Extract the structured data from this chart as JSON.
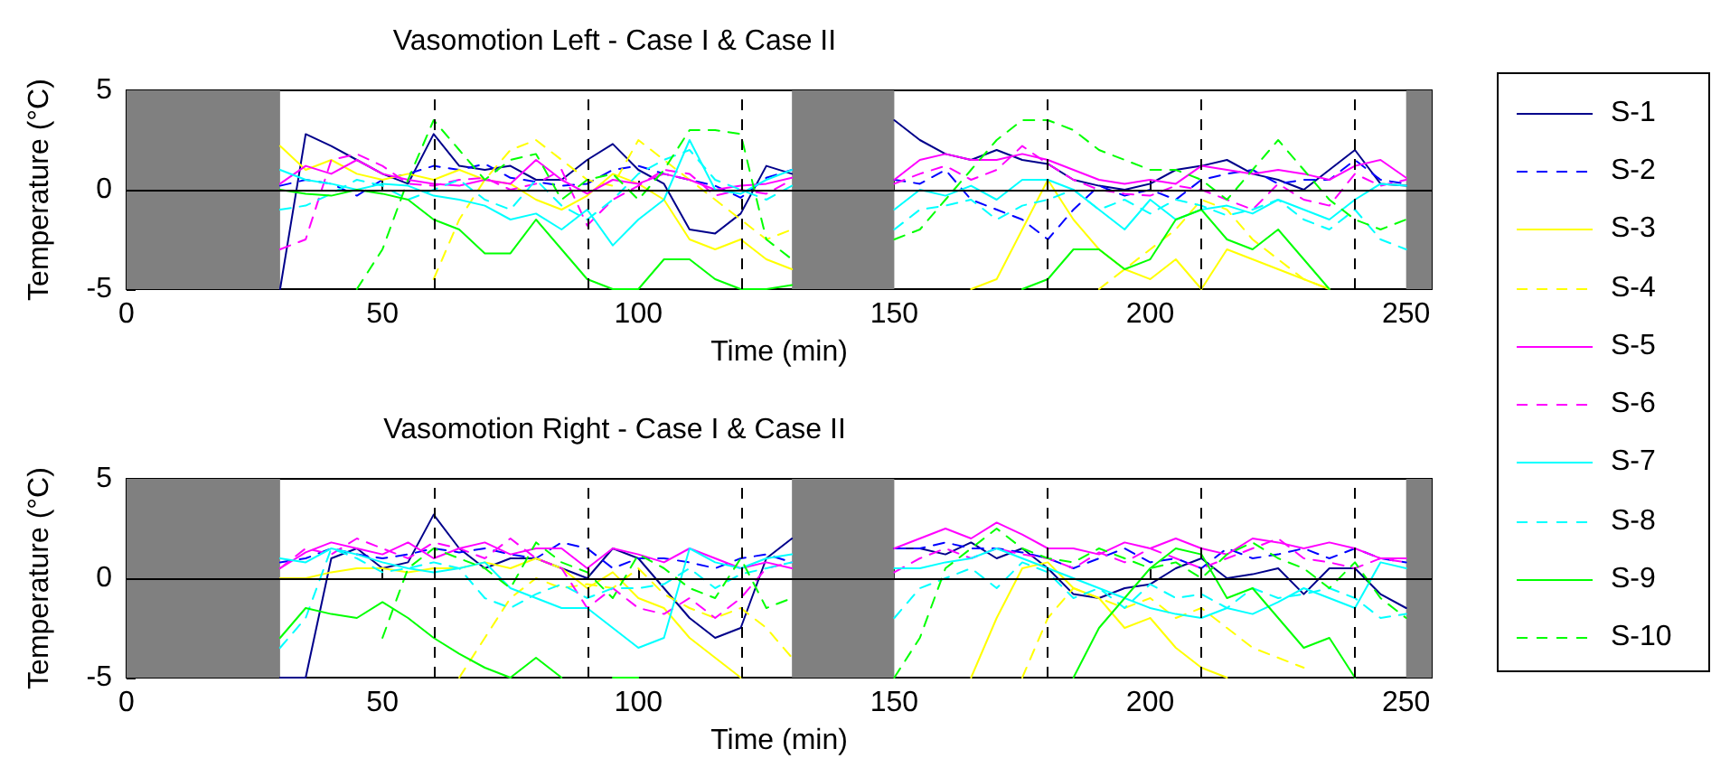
{
  "chart_data": [
    {
      "type": "line",
      "title": "Vasomotion Left - Case I & Case II",
      "xlabel": "Time (min)",
      "ylabel": "Temperature (°C)",
      "x": [
        30,
        35,
        40,
        45,
        50,
        55,
        60,
        65,
        70,
        75,
        80,
        85,
        90,
        95,
        100,
        105,
        110,
        115,
        120,
        125,
        130,
        140,
        150,
        155,
        160,
        165,
        170,
        175,
        180,
        185,
        190,
        195,
        200,
        205,
        210,
        215,
        220,
        225,
        230,
        235,
        240,
        245,
        250
      ],
      "xlim": [
        0,
        255
      ],
      "xticks": [
        0,
        50,
        100,
        150,
        200,
        250
      ],
      "ylim": [
        -5,
        5
      ],
      "yticks": [
        -5,
        0,
        5
      ],
      "grid": false,
      "legend": "right",
      "marker": "none",
      "bands": [
        {
          "axis": "x",
          "from": 0,
          "to": 30,
          "color": "#808080"
        },
        {
          "axis": "x",
          "from": 130,
          "to": 150,
          "color": "#808080"
        },
        {
          "axis": "x",
          "from": 250,
          "to": 255,
          "color": "#808080"
        }
      ],
      "ref_lines": [
        {
          "axis": "y",
          "value": 0,
          "color": "#000000",
          "line_style": "solid"
        },
        {
          "axis": "x",
          "value": 60,
          "color": "#000000",
          "line_style": "dashed"
        },
        {
          "axis": "x",
          "value": 90,
          "color": "#000000",
          "line_style": "dashed"
        },
        {
          "axis": "x",
          "value": 120,
          "color": "#000000",
          "line_style": "dashed"
        },
        {
          "axis": "x",
          "value": 180,
          "color": "#000000",
          "line_style": "dashed"
        },
        {
          "axis": "x",
          "value": 210,
          "color": "#000000",
          "line_style": "dashed"
        },
        {
          "axis": "x",
          "value": 240,
          "color": "#000000",
          "line_style": "dashed"
        }
      ],
      "series": [
        {
          "name": "S-1",
          "color": "#00008b",
          "line_style": "solid",
          "values": [
            -5,
            2.8,
            2.2,
            1.5,
            0.8,
            0.3,
            2.8,
            1.2,
            1.0,
            1.2,
            0.5,
            0.5,
            1.5,
            2.3,
            1.0,
            0.3,
            -2.0,
            -2.2,
            -1.2,
            1.2,
            0.8,
            null,
            3.5,
            2.5,
            1.8,
            1.5,
            2.0,
            1.5,
            1.3,
            0.5,
            0.2,
            0.0,
            0.3,
            1.0,
            1.2,
            1.5,
            0.8,
            0.5,
            0.0,
            1.0,
            2.0,
            0.3,
            0.2
          ]
        },
        {
          "name": "S-2",
          "color": "#0000ff",
          "line_style": "dashed",
          "values": [
            0.2,
            0.5,
            0.3,
            -0.3,
            0.5,
            0.8,
            1.2,
            1.0,
            1.3,
            0.6,
            0.4,
            0.2,
            0.3,
            1.0,
            1.2,
            0.8,
            0.5,
            0.2,
            -0.4,
            0.6,
            1.0,
            null,
            0.5,
            0.3,
            1.0,
            -0.5,
            -1.0,
            -1.5,
            -2.5,
            -1.0,
            0.2,
            -0.3,
            0.0,
            -0.5,
            0.5,
            0.8,
            1.0,
            0.3,
            0.5,
            0.5,
            1.5,
            0.5,
            0.3
          ]
        },
        {
          "name": "S-3",
          "color": "#ffff00",
          "line_style": "solid",
          "values": [
            2.2,
            1.0,
            1.5,
            0.8,
            0.5,
            0.8,
            0.5,
            1.0,
            0.5,
            0.3,
            -0.5,
            -1.0,
            -0.3,
            0.8,
            0.3,
            -0.5,
            -2.5,
            -3.0,
            -2.5,
            -3.5,
            -4.0,
            null,
            null,
            null,
            null,
            -5,
            -4.5,
            -2,
            0.5,
            -1.5,
            -3.0,
            -4.0,
            -4.5,
            -3.5,
            -5,
            -3.0,
            -3.5,
            -4.0,
            -4.5,
            -5,
            null,
            null,
            null
          ]
        },
        {
          "name": "S-4",
          "color": "#ffff00",
          "line_style": "dashed",
          "values": [
            null,
            null,
            null,
            null,
            null,
            null,
            -4.5,
            -1.5,
            0.5,
            2.0,
            2.5,
            1.5,
            0.5,
            0.2,
            2.5,
            1.5,
            0.5,
            -0.5,
            -1.5,
            -2.5,
            -2.0,
            null,
            null,
            null,
            null,
            null,
            null,
            null,
            null,
            null,
            -5,
            -4.0,
            -3.0,
            -2.0,
            -0.5,
            -1.0,
            -2.5,
            -3.5,
            -4.5,
            -5,
            null,
            null,
            null
          ]
        },
        {
          "name": "S-5",
          "color": "#ff00ff",
          "line_style": "solid",
          "values": [
            0.3,
            1.2,
            0.8,
            1.5,
            0.8,
            0.5,
            0.3,
            0.2,
            0.5,
            0.3,
            1.5,
            0.5,
            -0.2,
            0.5,
            0.3,
            0.8,
            0.5,
            0.0,
            0.2,
            0.3,
            0.6,
            null,
            0.5,
            1.5,
            1.8,
            1.5,
            1.5,
            1.8,
            1.5,
            1.0,
            0.5,
            0.3,
            0.5,
            0.3,
            1.2,
            1.0,
            0.8,
            1.0,
            0.8,
            0.5,
            1.2,
            1.5,
            0.6
          ]
        },
        {
          "name": "S-6",
          "color": "#ff00ff",
          "line_style": "dashed",
          "values": [
            -3.0,
            -2.5,
            1.5,
            1.8,
            1.2,
            0.3,
            0.2,
            0.5,
            0.6,
            0.0,
            0.3,
            1.0,
            -1.8,
            -0.5,
            0.2,
            1.0,
            0.8,
            -0.3,
            0.0,
            -0.2,
            0.5,
            null,
            0.3,
            0.8,
            1.2,
            0.5,
            1.0,
            2.2,
            1.3,
            0.5,
            0.0,
            -0.2,
            -0.3,
            0.2,
            0.0,
            -0.5,
            -1.0,
            0.3,
            -0.5,
            -0.8,
            0.8,
            0.2,
            0.5
          ]
        },
        {
          "name": "S-7",
          "color": "#00ffff",
          "line_style": "solid",
          "values": [
            1.0,
            0.5,
            0.3,
            0.0,
            0.3,
            0.2,
            -0.3,
            -0.5,
            -0.8,
            -1.5,
            -1.2,
            -2.0,
            -1.0,
            -2.8,
            -1.5,
            -0.5,
            2.5,
            0.0,
            -0.2,
            0.5,
            1.0,
            null,
            -1.0,
            0.0,
            -0.3,
            0.2,
            -0.5,
            0.5,
            0.5,
            0.0,
            -1.0,
            -2.0,
            -0.5,
            -1.5,
            -1.0,
            -0.8,
            -1.2,
            -0.5,
            -1.0,
            -1.5,
            -0.5,
            0.3,
            0.2
          ]
        },
        {
          "name": "S-8",
          "color": "#00ffff",
          "line_style": "dashed",
          "values": [
            -1.0,
            -0.8,
            -0.2,
            0.5,
            0.2,
            -0.5,
            0.0,
            0.5,
            -0.5,
            -1.0,
            0.5,
            -0.8,
            -1.5,
            -0.5,
            0.8,
            1.5,
            2.0,
            0.5,
            0.0,
            -0.5,
            0.2,
            null,
            -2.0,
            -1.0,
            -0.8,
            -0.5,
            -1.5,
            -0.8,
            -0.5,
            0.0,
            -1.0,
            -0.5,
            -1.2,
            -0.5,
            -0.8,
            -1.3,
            -1.0,
            -0.5,
            -1.5,
            -2.0,
            -1.0,
            -2.5,
            -3.0
          ]
        },
        {
          "name": "S-9",
          "color": "#00ff00",
          "line_style": "solid",
          "values": [
            0.0,
            -0.2,
            -0.3,
            0.0,
            -0.2,
            -0.5,
            -1.5,
            -2.0,
            -3.2,
            -3.2,
            -1.5,
            -3.0,
            -4.5,
            -5,
            -5,
            -3.5,
            -3.5,
            -4.5,
            -5,
            -5,
            -4.8,
            null,
            null,
            null,
            null,
            null,
            null,
            -5,
            -4.5,
            -3.0,
            -3.0,
            -4.0,
            -3.5,
            -1.5,
            -1.0,
            -2.5,
            -3.0,
            -2.0,
            -3.5,
            -5,
            null,
            null,
            null
          ]
        },
        {
          "name": "S-10",
          "color": "#00ff00",
          "line_style": "dashed",
          "values": [
            null,
            null,
            null,
            -5,
            -3.0,
            0.5,
            3.5,
            2.0,
            0.5,
            1.5,
            1.8,
            -0.5,
            0.5,
            0.8,
            -0.5,
            1.0,
            3.0,
            3.0,
            2.8,
            -2.5,
            -3.5,
            null,
            -2.5,
            -2.0,
            -0.5,
            1.0,
            2.5,
            3.5,
            3.5,
            3.0,
            2.0,
            1.5,
            1.0,
            1.0,
            0.5,
            -0.5,
            1.0,
            2.5,
            1.0,
            -0.5,
            -1.5,
            -2.0,
            -1.5
          ]
        }
      ]
    },
    {
      "type": "line",
      "title": "Vasomotion Right - Case I & Case II",
      "xlabel": "Time (min)",
      "ylabel": "Temperature (°C)",
      "x": [
        30,
        35,
        40,
        45,
        50,
        55,
        60,
        65,
        70,
        75,
        80,
        85,
        90,
        95,
        100,
        105,
        110,
        115,
        120,
        125,
        130,
        140,
        150,
        155,
        160,
        165,
        170,
        175,
        180,
        185,
        190,
        195,
        200,
        205,
        210,
        215,
        220,
        225,
        230,
        235,
        240,
        245,
        250
      ],
      "xlim": [
        0,
        255
      ],
      "xticks": [
        0,
        50,
        100,
        150,
        200,
        250
      ],
      "ylim": [
        -5,
        5
      ],
      "yticks": [
        -5,
        0,
        5
      ],
      "grid": false,
      "marker": "none",
      "bands": [
        {
          "axis": "x",
          "from": 0,
          "to": 30,
          "color": "#808080"
        },
        {
          "axis": "x",
          "from": 130,
          "to": 150,
          "color": "#808080"
        },
        {
          "axis": "x",
          "from": 250,
          "to": 255,
          "color": "#808080"
        }
      ],
      "ref_lines": [
        {
          "axis": "y",
          "value": 0,
          "color": "#000000",
          "line_style": "solid"
        },
        {
          "axis": "x",
          "value": 60,
          "color": "#000000",
          "line_style": "dashed"
        },
        {
          "axis": "x",
          "value": 90,
          "color": "#000000",
          "line_style": "dashed"
        },
        {
          "axis": "x",
          "value": 120,
          "color": "#000000",
          "line_style": "dashed"
        },
        {
          "axis": "x",
          "value": 180,
          "color": "#000000",
          "line_style": "dashed"
        },
        {
          "axis": "x",
          "value": 210,
          "color": "#000000",
          "line_style": "dashed"
        },
        {
          "axis": "x",
          "value": 240,
          "color": "#000000",
          "line_style": "dashed"
        }
      ],
      "series": [
        {
          "color": "#00008b",
          "line_style": "solid",
          "values": [
            -5,
            -5,
            1.0,
            1.5,
            0.5,
            0.8,
            3.2,
            1.5,
            0.5,
            1.0,
            1.0,
            0.5,
            0.0,
            1.5,
            1.0,
            -0.5,
            -2.0,
            -3.0,
            -2.5,
            1.0,
            2.0,
            null,
            1.5,
            1.5,
            1.2,
            1.8,
            1.0,
            1.5,
            0.5,
            -0.8,
            -1.0,
            -0.5,
            -0.3,
            0.5,
            1.0,
            0.0,
            0.2,
            0.5,
            -0.8,
            0.5,
            0.5,
            -0.8,
            -1.5
          ]
        },
        {
          "color": "#0000ff",
          "line_style": "dashed",
          "values": [
            0.8,
            1.0,
            1.5,
            1.2,
            1.0,
            1.2,
            1.5,
            1.3,
            1.5,
            1.2,
            1.0,
            1.8,
            1.5,
            0.5,
            1.0,
            1.0,
            0.8,
            0.5,
            1.0,
            1.2,
            0.8,
            null,
            1.5,
            1.5,
            1.8,
            1.5,
            1.5,
            1.3,
            1.0,
            0.5,
            1.0,
            1.5,
            0.8,
            1.0,
            0.5,
            1.5,
            1.0,
            1.2,
            1.5,
            1.0,
            1.5,
            1.0,
            0.8
          ]
        },
        {
          "color": "#ffff00",
          "line_style": "solid",
          "values": [
            0.0,
            0.0,
            0.3,
            0.5,
            0.5,
            0.3,
            0.5,
            0.5,
            0.8,
            0.5,
            1.0,
            0.5,
            -0.5,
            0.3,
            -1.0,
            -1.5,
            -3.0,
            -4.0,
            -5,
            null,
            null,
            null,
            null,
            null,
            null,
            -5,
            -2.0,
            0.5,
            0.8,
            -0.5,
            -1.0,
            -2.5,
            -2.0,
            -3.5,
            -4.5,
            -5,
            null,
            null,
            null,
            null,
            null,
            null,
            null
          ]
        },
        {
          "color": "#ffff00",
          "line_style": "dashed",
          "values": [
            null,
            null,
            null,
            null,
            null,
            null,
            null,
            -5,
            -3.0,
            -1.0,
            0.0,
            -0.5,
            -0.3,
            -0.5,
            0.5,
            -0.8,
            -1.5,
            -2.0,
            -1.5,
            -2.5,
            -4.0,
            null,
            null,
            null,
            null,
            null,
            null,
            -5,
            -2.0,
            -0.5,
            -1.0,
            -1.5,
            -1.0,
            -2.0,
            -1.5,
            -2.5,
            -3.5,
            -4.0,
            -4.5,
            null,
            null,
            null,
            null
          ]
        },
        {
          "color": "#ff00ff",
          "line_style": "solid",
          "values": [
            0.5,
            1.3,
            1.8,
            1.5,
            1.2,
            1.8,
            1.0,
            1.5,
            1.8,
            1.2,
            1.5,
            1.5,
            0.5,
            1.5,
            1.2,
            0.8,
            1.5,
            1.0,
            0.5,
            0.8,
            0.5,
            null,
            1.5,
            2.0,
            2.5,
            2.0,
            2.8,
            2.2,
            1.5,
            1.5,
            1.2,
            1.8,
            1.5,
            2.0,
            1.5,
            1.2,
            2.0,
            1.8,
            1.5,
            1.8,
            1.5,
            1.0,
            1.0
          ]
        },
        {
          "color": "#ff00ff",
          "line_style": "dashed",
          "values": [
            0.5,
            1.5,
            1.2,
            2.0,
            1.5,
            1.0,
            1.8,
            1.5,
            1.0,
            2.0,
            1.0,
            0.5,
            -1.5,
            -0.5,
            -1.5,
            -1.8,
            -1.0,
            -2.0,
            -1.0,
            0.5,
            0.8,
            null,
            0.3,
            1.0,
            1.5,
            1.0,
            1.5,
            1.2,
            1.0,
            0.5,
            1.3,
            0.8,
            1.5,
            1.0,
            0.5,
            1.0,
            1.5,
            2.0,
            1.0,
            0.8,
            0.5,
            1.0,
            0.8
          ]
        },
        {
          "color": "#00ffff",
          "line_style": "solid",
          "values": [
            1.0,
            0.8,
            1.5,
            1.2,
            0.8,
            0.5,
            0.3,
            0.5,
            0.8,
            -0.5,
            -1.0,
            -1.5,
            -1.5,
            -2.5,
            -3.5,
            -3.0,
            1.5,
            0.8,
            0.5,
            1.0,
            1.2,
            null,
            0.5,
            0.5,
            0.8,
            1.0,
            1.5,
            1.0,
            0.5,
            0.0,
            -0.5,
            -1.0,
            -1.5,
            -1.8,
            -2.0,
            -1.5,
            -1.8,
            -1.2,
            -0.5,
            -1.0,
            -1.5,
            0.8,
            0.5
          ]
        },
        {
          "color": "#00ffff",
          "line_style": "dashed",
          "values": [
            -3.5,
            -2.0,
            1.5,
            1.0,
            0.3,
            0.5,
            0.8,
            0.5,
            -1.0,
            -1.5,
            -0.8,
            -0.3,
            -1.0,
            -0.5,
            -0.5,
            -0.3,
            0.5,
            -0.5,
            0.2,
            0.5,
            0.8,
            null,
            -2.0,
            -0.5,
            0.0,
            0.5,
            -0.5,
            0.8,
            0.3,
            -1.0,
            -0.5,
            -1.5,
            -0.3,
            -1.0,
            -0.8,
            -1.5,
            -0.5,
            -1.0,
            -0.8,
            -0.5,
            -1.0,
            -2.0,
            -1.8
          ]
        },
        {
          "color": "#00ff00",
          "line_style": "solid",
          "values": [
            -3.0,
            -1.5,
            -1.8,
            -2.0,
            -1.2,
            -2.0,
            -3.0,
            -3.8,
            -4.5,
            -5,
            -4.0,
            -5,
            null,
            -5,
            -5,
            null,
            null,
            null,
            null,
            null,
            null,
            null,
            null,
            null,
            null,
            null,
            null,
            null,
            null,
            -5,
            -2.5,
            -1.0,
            0.5,
            1.5,
            1.2,
            -1.0,
            -0.5,
            -2.0,
            -3.5,
            -3.0,
            -5,
            null,
            null
          ]
        },
        {
          "color": "#00ff00",
          "line_style": "dashed",
          "values": [
            null,
            null,
            null,
            null,
            -3.0,
            0.5,
            1.5,
            1.0,
            0.5,
            -0.5,
            1.8,
            0.8,
            0.3,
            -1.0,
            1.2,
            0.5,
            -0.5,
            -1.0,
            1.0,
            -1.5,
            -1.0,
            null,
            -5,
            -3.0,
            0.5,
            1.5,
            2.5,
            1.5,
            1.0,
            0.8,
            1.5,
            1.0,
            0.5,
            0.8,
            0.0,
            1.2,
            1.8,
            1.0,
            0.5,
            -0.5,
            0.8,
            -1.0,
            -2.0
          ]
        }
      ]
    }
  ]
}
